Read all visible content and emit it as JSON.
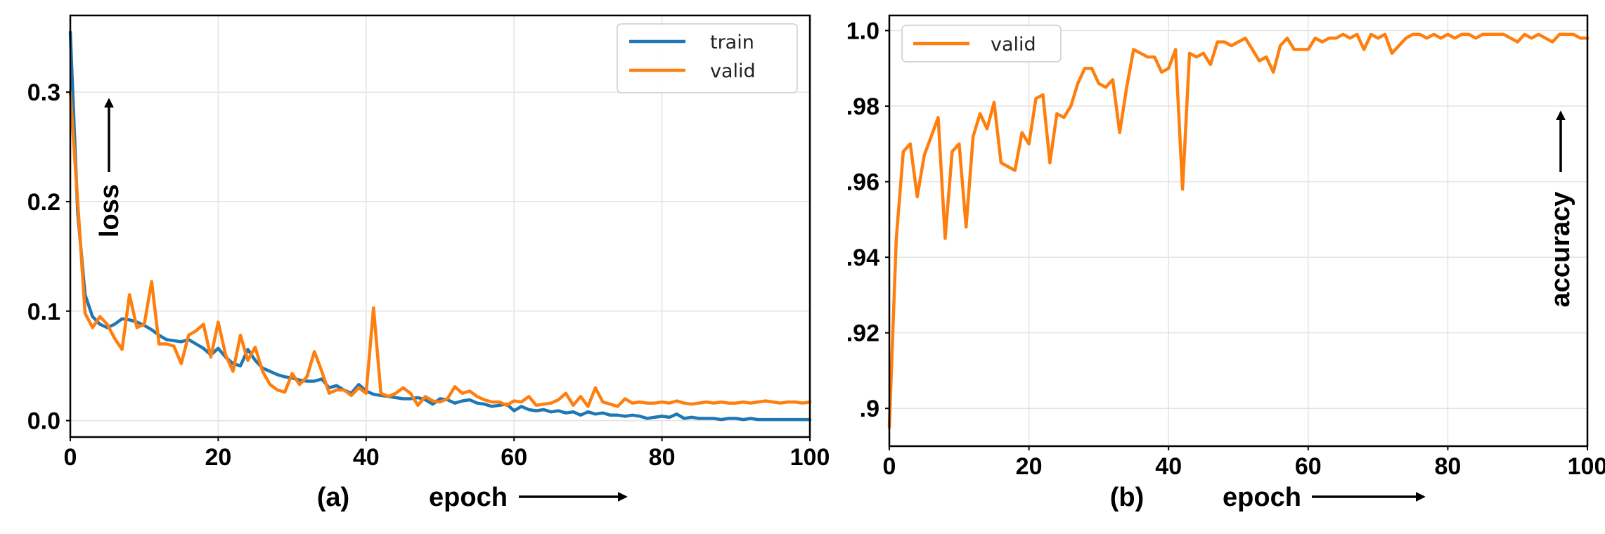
{
  "chart_data": [
    {
      "type": "line",
      "panel_label": "(a)",
      "xlabel": "epoch",
      "ylabel": "loss",
      "xlim": [
        0,
        100
      ],
      "ylim": [
        -0.015,
        0.37
      ],
      "xticks": [
        0,
        20,
        40,
        60,
        80,
        100
      ],
      "xtick_labels": [
        "0",
        "20",
        "40",
        "60",
        "80",
        "100"
      ],
      "yticks": [
        0.0,
        0.1,
        0.2,
        0.3
      ],
      "ytick_labels": [
        "0.0",
        "0.1",
        "0.2",
        "0.3"
      ],
      "grid": true,
      "legend_position": "top-right",
      "series": [
        {
          "name": "train",
          "color": "#1f77b4",
          "x": [
            0,
            1,
            2,
            3,
            4,
            5,
            6,
            7,
            8,
            9,
            10,
            11,
            12,
            13,
            14,
            15,
            16,
            17,
            18,
            19,
            20,
            21,
            22,
            23,
            24,
            25,
            26,
            27,
            28,
            29,
            30,
            31,
            32,
            33,
            34,
            35,
            36,
            37,
            38,
            39,
            40,
            41,
            42,
            43,
            44,
            45,
            46,
            47,
            48,
            49,
            50,
            51,
            52,
            53,
            54,
            55,
            56,
            57,
            58,
            59,
            60,
            61,
            62,
            63,
            64,
            65,
            66,
            67,
            68,
            69,
            70,
            71,
            72,
            73,
            74,
            75,
            76,
            77,
            78,
            79,
            80,
            81,
            82,
            83,
            84,
            85,
            86,
            87,
            88,
            89,
            90,
            91,
            92,
            93,
            94,
            95,
            96,
            97,
            98,
            99,
            100
          ],
          "y": [
            0.355,
            0.19,
            0.115,
            0.095,
            0.088,
            0.085,
            0.088,
            0.093,
            0.092,
            0.09,
            0.087,
            0.083,
            0.078,
            0.074,
            0.073,
            0.072,
            0.074,
            0.07,
            0.066,
            0.06,
            0.066,
            0.058,
            0.052,
            0.05,
            0.065,
            0.055,
            0.048,
            0.045,
            0.042,
            0.04,
            0.039,
            0.037,
            0.036,
            0.036,
            0.038,
            0.03,
            0.032,
            0.028,
            0.025,
            0.033,
            0.027,
            0.024,
            0.023,
            0.022,
            0.021,
            0.02,
            0.02,
            0.021,
            0.019,
            0.015,
            0.02,
            0.019,
            0.016,
            0.018,
            0.019,
            0.016,
            0.015,
            0.013,
            0.014,
            0.015,
            0.009,
            0.013,
            0.01,
            0.009,
            0.01,
            0.008,
            0.009,
            0.007,
            0.008,
            0.005,
            0.008,
            0.006,
            0.007,
            0.005,
            0.005,
            0.004,
            0.005,
            0.004,
            0.002,
            0.003,
            0.004,
            0.003,
            0.006,
            0.002,
            0.003,
            0.002,
            0.002,
            0.002,
            0.001,
            0.002,
            0.002,
            0.001,
            0.002,
            0.001,
            0.001,
            0.001,
            0.001,
            0.001,
            0.001,
            0.001,
            0.001
          ]
        },
        {
          "name": "valid",
          "color": "#ff7f0e",
          "x": [
            0,
            1,
            2,
            3,
            4,
            5,
            6,
            7,
            8,
            9,
            10,
            11,
            12,
            13,
            14,
            15,
            16,
            17,
            18,
            19,
            20,
            21,
            22,
            23,
            24,
            25,
            26,
            27,
            28,
            29,
            30,
            31,
            32,
            33,
            34,
            35,
            36,
            37,
            38,
            39,
            40,
            41,
            42,
            43,
            44,
            45,
            46,
            47,
            48,
            49,
            50,
            51,
            52,
            53,
            54,
            55,
            56,
            57,
            58,
            59,
            60,
            61,
            62,
            63,
            64,
            65,
            66,
            67,
            68,
            69,
            70,
            71,
            72,
            73,
            74,
            75,
            76,
            77,
            78,
            79,
            80,
            81,
            82,
            83,
            84,
            85,
            86,
            87,
            88,
            89,
            90,
            91,
            92,
            93,
            94,
            95,
            96,
            97,
            98,
            99,
            100
          ],
          "y": [
            0.3,
            0.2,
            0.098,
            0.085,
            0.095,
            0.088,
            0.075,
            0.065,
            0.115,
            0.085,
            0.088,
            0.127,
            0.07,
            0.07,
            0.068,
            0.052,
            0.078,
            0.082,
            0.088,
            0.058,
            0.09,
            0.06,
            0.045,
            0.078,
            0.055,
            0.067,
            0.045,
            0.033,
            0.028,
            0.026,
            0.043,
            0.033,
            0.04,
            0.063,
            0.045,
            0.025,
            0.028,
            0.028,
            0.023,
            0.03,
            0.025,
            0.103,
            0.025,
            0.022,
            0.025,
            0.03,
            0.025,
            0.014,
            0.022,
            0.018,
            0.017,
            0.02,
            0.031,
            0.025,
            0.027,
            0.022,
            0.019,
            0.017,
            0.017,
            0.014,
            0.018,
            0.017,
            0.022,
            0.014,
            0.015,
            0.016,
            0.019,
            0.025,
            0.014,
            0.022,
            0.013,
            0.03,
            0.017,
            0.015,
            0.013,
            0.02,
            0.016,
            0.017,
            0.016,
            0.016,
            0.017,
            0.016,
            0.018,
            0.016,
            0.015,
            0.016,
            0.017,
            0.016,
            0.017,
            0.016,
            0.016,
            0.017,
            0.016,
            0.017,
            0.018,
            0.017,
            0.016,
            0.017,
            0.017,
            0.016,
            0.017
          ]
        }
      ]
    },
    {
      "type": "line",
      "panel_label": "(b)",
      "xlabel": "epoch",
      "ylabel": "accuracy",
      "xlim": [
        0,
        100
      ],
      "ylim": [
        0.89,
        1.004
      ],
      "xticks": [
        0,
        20,
        40,
        60,
        80,
        100
      ],
      "xtick_labels": [
        "0",
        "20",
        "40",
        "60",
        "80",
        "100"
      ],
      "yticks": [
        0.9,
        0.92,
        0.94,
        0.96,
        0.98,
        1.0
      ],
      "ytick_labels": [
        ".9",
        ".92",
        ".94",
        ".96",
        ".98",
        "1.0"
      ],
      "grid": true,
      "legend_position": "top-left",
      "series": [
        {
          "name": "valid",
          "color": "#ff7f0e",
          "x": [
            0,
            1,
            2,
            3,
            4,
            5,
            6,
            7,
            8,
            9,
            10,
            11,
            12,
            13,
            14,
            15,
            16,
            17,
            18,
            19,
            20,
            21,
            22,
            23,
            24,
            25,
            26,
            27,
            28,
            29,
            30,
            31,
            32,
            33,
            34,
            35,
            36,
            37,
            38,
            39,
            40,
            41,
            42,
            43,
            44,
            45,
            46,
            47,
            48,
            49,
            50,
            51,
            52,
            53,
            54,
            55,
            56,
            57,
            58,
            59,
            60,
            61,
            62,
            63,
            64,
            65,
            66,
            67,
            68,
            69,
            70,
            71,
            72,
            73,
            74,
            75,
            76,
            77,
            78,
            79,
            80,
            81,
            82,
            83,
            84,
            85,
            86,
            87,
            88,
            89,
            90,
            91,
            92,
            93,
            94,
            95,
            96,
            97,
            98,
            99,
            100
          ],
          "y": [
            0.895,
            0.945,
            0.968,
            0.97,
            0.956,
            0.967,
            0.972,
            0.977,
            0.945,
            0.968,
            0.97,
            0.948,
            0.972,
            0.978,
            0.974,
            0.981,
            0.965,
            0.964,
            0.963,
            0.973,
            0.97,
            0.982,
            0.983,
            0.965,
            0.978,
            0.977,
            0.98,
            0.986,
            0.99,
            0.99,
            0.986,
            0.985,
            0.987,
            0.973,
            0.985,
            0.995,
            0.994,
            0.993,
            0.993,
            0.989,
            0.99,
            0.995,
            0.958,
            0.994,
            0.993,
            0.994,
            0.991,
            0.997,
            0.997,
            0.996,
            0.997,
            0.998,
            0.995,
            0.992,
            0.993,
            0.989,
            0.996,
            0.998,
            0.995,
            0.995,
            0.995,
            0.998,
            0.997,
            0.998,
            0.998,
            0.999,
            0.998,
            0.999,
            0.995,
            0.999,
            0.998,
            0.999,
            0.994,
            0.996,
            0.998,
            0.999,
            0.999,
            0.998,
            0.999,
            0.998,
            0.999,
            0.998,
            0.999,
            0.999,
            0.998,
            0.999,
            0.999,
            0.999,
            0.999,
            0.998,
            0.997,
            0.999,
            0.998,
            0.999,
            0.998,
            0.997,
            0.999,
            0.999,
            0.999,
            0.998,
            0.998
          ]
        }
      ]
    }
  ]
}
